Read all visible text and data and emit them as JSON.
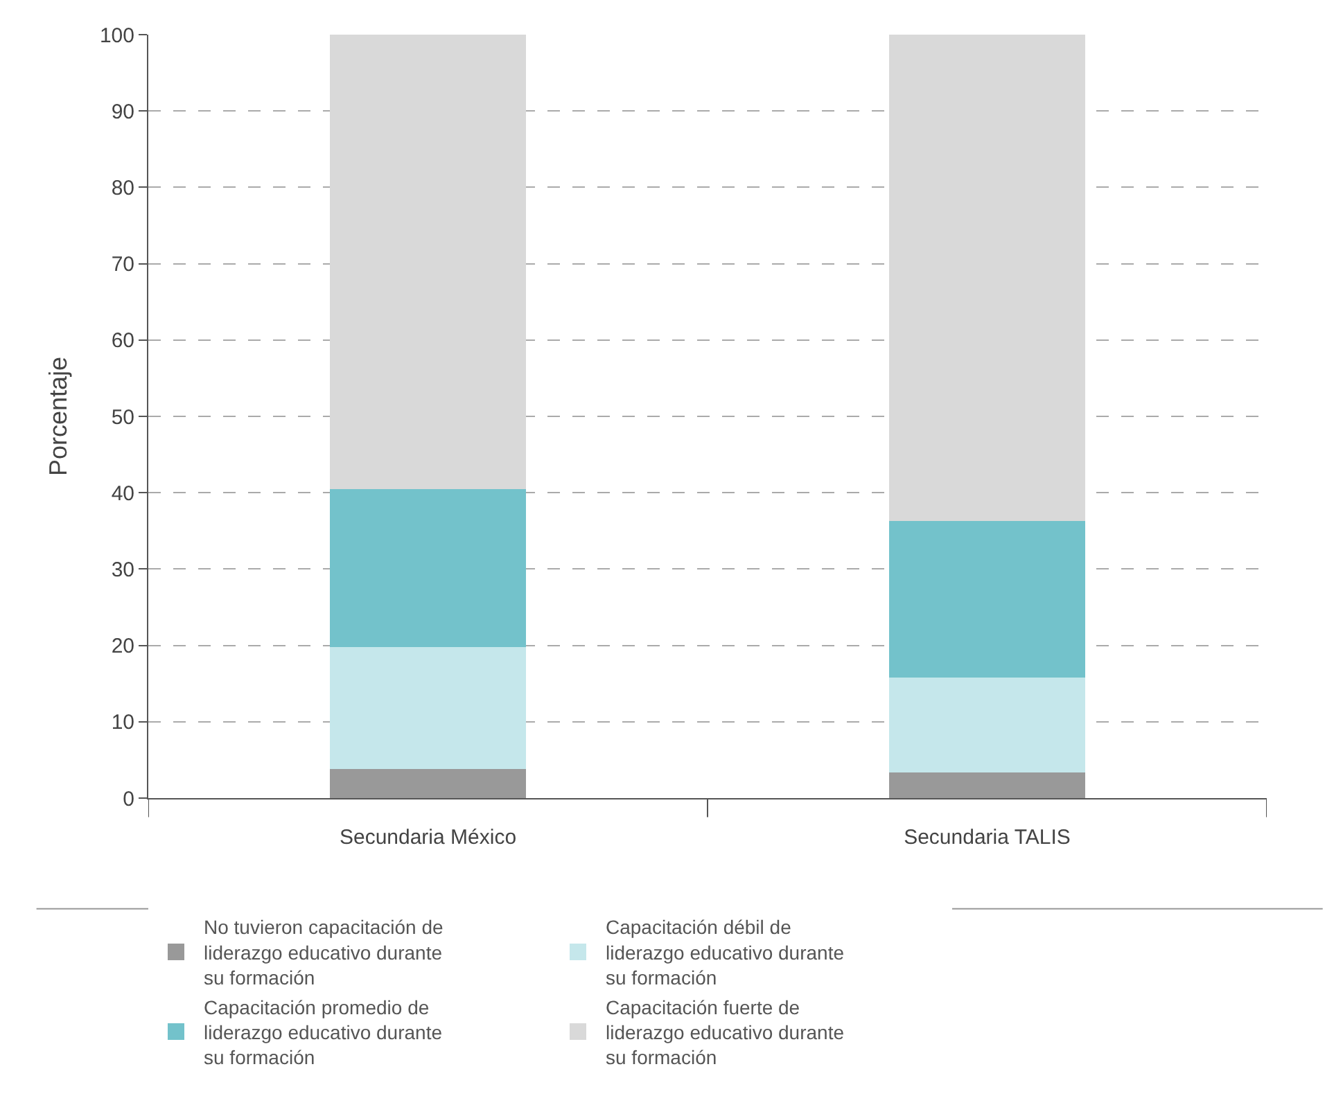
{
  "chart_data": {
    "type": "bar",
    "stacked": true,
    "ylabel": "Porcentaje",
    "categories": [
      "Secundaria México",
      "Secundaria TALIS"
    ],
    "series": [
      {
        "name": "No tuvieron capacitación de liderazgo educativo durante su formación",
        "color": "#999999",
        "values": [
          3.8,
          3.4
        ]
      },
      {
        "name": "Capacitación débil de liderazgo educativo durante su formación",
        "color": "#c5e7eb",
        "values": [
          16.0,
          12.4
        ]
      },
      {
        "name": "Capacitación promedio de liderazgo educativo durante su formación",
        "color": "#73c2cb",
        "values": [
          20.7,
          20.5
        ]
      },
      {
        "name": "Capacitación fuerte de liderazgo educativo durante su formación",
        "color": "#d9d9d9",
        "values": [
          59.5,
          63.7
        ]
      }
    ],
    "ylim": [
      0,
      100
    ],
    "yticks": [
      0,
      10,
      20,
      30,
      40,
      50,
      60,
      70,
      80,
      90,
      100
    ],
    "grid": "y",
    "legend": "bottom"
  }
}
